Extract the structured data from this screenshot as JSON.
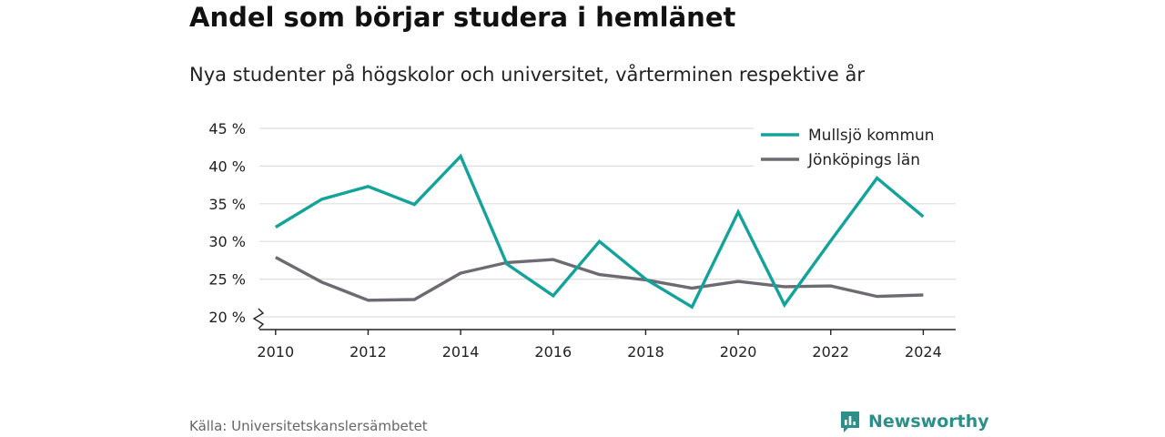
{
  "header": {
    "title": "Andel som börjar studera i hemlänet",
    "subtitle": "Nya studenter på högskolor och universitet, vårterminen respektive år"
  },
  "footer": {
    "source": "Källa: Universitetskanslersämbetet",
    "brand": "Newsworthy",
    "brand_icon": "bar-chart-speech-bubble-icon"
  },
  "colors": {
    "mullsjo": "#14a39a",
    "jonkoping": "#6d6b71",
    "grid": "#dddddd",
    "axis": "#222222",
    "brand": "#2d8f8a"
  },
  "chart_data": {
    "type": "line",
    "x": [
      2010,
      2011,
      2012,
      2013,
      2014,
      2015,
      2016,
      2017,
      2018,
      2019,
      2020,
      2021,
      2022,
      2023,
      2024
    ],
    "x_ticks": [
      2010,
      2012,
      2014,
      2016,
      2018,
      2020,
      2022,
      2024
    ],
    "y_ticks": [
      20,
      25,
      30,
      35,
      40,
      45
    ],
    "y_tick_suffix": " %",
    "ylim": [
      20,
      45
    ],
    "y_axis_break": true,
    "grid": true,
    "legend_position": "top-right",
    "series": [
      {
        "name": "Mullsjö kommun",
        "color": "#14a39a",
        "values": [
          31.9,
          35.6,
          37.3,
          34.9,
          41.3,
          27.0,
          22.8,
          30.0,
          25.0,
          21.3,
          33.9,
          21.6,
          30.1,
          38.4,
          33.3
        ]
      },
      {
        "name": "Jönköpings län",
        "color": "#6d6b71",
        "values": [
          27.9,
          24.6,
          22.2,
          22.3,
          25.8,
          27.2,
          27.6,
          25.6,
          24.9,
          23.8,
          24.7,
          24.0,
          24.1,
          22.7,
          22.9
        ]
      }
    ]
  }
}
